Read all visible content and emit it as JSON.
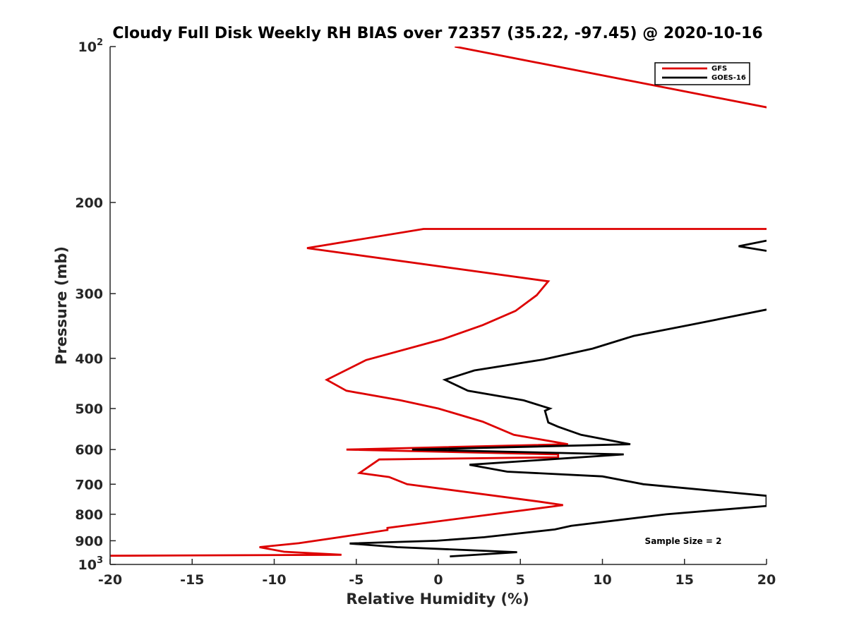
{
  "chart_data": {
    "type": "line",
    "title": "Cloudy Full Disk Weekly RH BIAS over 72357 (35.22, -97.45) @ 2020-10-16",
    "xlabel": "Relative Humidity (%)",
    "ylabel": "Pressure (mb)",
    "xlim": [
      -20,
      20
    ],
    "ylim": [
      100,
      1000
    ],
    "yscale": "log",
    "y_reversed": true,
    "grid": false,
    "legend_position": "top-right",
    "x_ticks": [
      "-20",
      "-15",
      "-10",
      "-5",
      "0",
      "5",
      "10",
      "15",
      "20"
    ],
    "y_ticks": [
      {
        "value": 100,
        "base": "10",
        "exp": "2"
      },
      {
        "value": 200,
        "label": "200"
      },
      {
        "value": 300,
        "label": "300"
      },
      {
        "value": 400,
        "label": "400"
      },
      {
        "value": 500,
        "label": "500"
      },
      {
        "value": 600,
        "label": "600"
      },
      {
        "value": 700,
        "label": "700"
      },
      {
        "value": 800,
        "label": "800"
      },
      {
        "value": 900,
        "label": "900"
      },
      {
        "value": 1000,
        "base": "10",
        "exp": "3"
      }
    ],
    "annotation": "Sample Size = 2",
    "series": [
      {
        "name": "GFS",
        "color": "#dd0000",
        "points": [
          [
            1,
            100
          ],
          [
            20,
            131
          ],
          [
            50,
            199
          ],
          [
            50,
            225
          ],
          [
            -0.9,
            225
          ],
          [
            -8,
            245
          ],
          [
            6.7,
            284
          ],
          [
            6,
            302
          ],
          [
            4.7,
            324
          ],
          [
            2.7,
            345
          ],
          [
            0.3,
            367
          ],
          [
            -4.4,
            403
          ],
          [
            -6.8,
            440
          ],
          [
            -5.6,
            462
          ],
          [
            -2.3,
            482
          ],
          [
            0,
            500
          ],
          [
            2.7,
            530
          ],
          [
            4.6,
            562
          ],
          [
            7.9,
            586
          ],
          [
            -5.6,
            600
          ],
          [
            7.3,
            613
          ],
          [
            7.3,
            621
          ],
          [
            -3.6,
            627
          ],
          [
            -4.8,
            666
          ],
          [
            -3,
            678
          ],
          [
            -1.9,
            700
          ],
          [
            6.1,
            756
          ],
          [
            7.6,
            768
          ],
          [
            -3.1,
            850
          ],
          [
            -3.1,
            858
          ],
          [
            -5.4,
            880
          ],
          [
            -8.5,
            910
          ],
          [
            -10.9,
            926
          ],
          [
            -9.4,
            945
          ],
          [
            -5.9,
            958
          ],
          [
            -20,
            962
          ],
          [
            -23,
            962
          ]
        ]
      },
      {
        "name": "GOES-16",
        "color": "#000000",
        "points": [
          [
            20,
            237
          ],
          [
            18.3,
            243
          ],
          [
            20,
            248
          ]
        ],
        "segments": [
          [
            [
              20,
              322
            ],
            [
              15.5,
              344
            ],
            [
              11.9,
              362
            ],
            [
              9.4,
              383
            ],
            [
              6.4,
              402
            ],
            [
              2.2,
              422
            ],
            [
              0.4,
              440
            ],
            [
              1.8,
              462
            ],
            [
              5.2,
              482
            ],
            [
              6.8,
              500
            ],
            [
              6.5,
              505
            ],
            [
              6.7,
              532
            ],
            [
              7.3,
              542
            ],
            [
              8.7,
              562
            ],
            [
              11.7,
              586
            ],
            [
              -1.6,
              600
            ],
            [
              11.3,
              613
            ],
            [
              1.9,
              642
            ],
            [
              4.2,
              662
            ],
            [
              10,
              676
            ],
            [
              12.5,
              700
            ],
            [
              20,
              737
            ],
            [
              20,
              771
            ],
            [
              13.9,
              800
            ],
            [
              8.1,
              842
            ],
            [
              7.1,
              856
            ],
            [
              2.8,
              886
            ],
            [
              -0.1,
              900
            ],
            [
              -5.4,
              911
            ],
            [
              -2.5,
              926
            ],
            [
              4.8,
              947
            ],
            [
              0.7,
              965
            ]
          ]
        ]
      }
    ]
  }
}
